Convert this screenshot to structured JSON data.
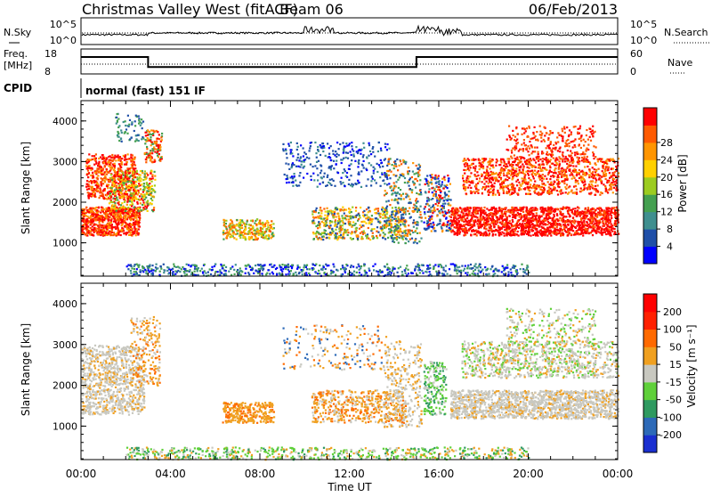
{
  "header": {
    "station": "Christmas Valley West (fitACF)",
    "beam": "Beam 06",
    "date": "06/Feb/2013",
    "cpid_label": "CPID",
    "cpid_value": "normal (fast) 151 IF"
  },
  "chart_data": [
    {
      "type": "line",
      "panel": "noise",
      "left_label": "N.Sky",
      "right_label": "N.Search",
      "left_ticks": [
        "10^5",
        "10^0"
      ],
      "right_ticks": [
        "10^5",
        "10^0"
      ],
      "series": [
        {
          "name": "N.Sky",
          "style": "solid"
        },
        {
          "name": "N.Search",
          "style": "dotted"
        }
      ]
    },
    {
      "type": "line",
      "panel": "frequency",
      "left_label_line1": "Freq.",
      "left_label_line2": "[MHz]",
      "right_label": "Nave",
      "left_ticks": [
        "18",
        "8"
      ],
      "right_ticks": [
        "60",
        "0"
      ],
      "x": [
        0,
        3,
        3,
        15,
        15,
        24
      ],
      "freq_mhz": [
        15,
        15,
        10.5,
        10.5,
        15,
        15
      ],
      "nave": [
        0,
        24
      ]
    },
    {
      "type": "heatmap",
      "panel": "power",
      "ylabel": "Slant Range [km]",
      "ylim": [
        180,
        4500
      ],
      "yticks": [
        "1000",
        "2000",
        "3000",
        "4000"
      ],
      "colorbar_label": "Power [dB]",
      "colorbar_ticks": [
        "4",
        "8",
        "12",
        "16",
        "20",
        "24",
        "28"
      ],
      "colors": [
        "#0000ff",
        "#1f4fa8",
        "#3f8f8f",
        "#44a050",
        "#9ccc20",
        "#ffd000",
        "#ff9500",
        "#ff5a00",
        "#ff0000"
      ]
    },
    {
      "type": "heatmap",
      "panel": "velocity",
      "ylabel": "Slant Range [km]",
      "ylim": [
        180,
        4500
      ],
      "yticks": [
        "1000",
        "2000",
        "3000",
        "4000"
      ],
      "colorbar_label": "Velocity [m s⁻¹]",
      "colorbar_ticks": [
        "200",
        "100",
        "50",
        "15",
        "-15",
        "-50",
        "-100",
        "-200"
      ],
      "colors": [
        "#1a2fd0",
        "#2d6ab8",
        "#2f9a60",
        "#5fd03a",
        "#c8c8c0",
        "#f0a020",
        "#ff6a00",
        "#ff2000",
        "#ff0000"
      ]
    }
  ],
  "xaxis": {
    "label": "Time UT",
    "ticks": [
      "00:00",
      "04:00",
      "08:00",
      "12:00",
      "16:00",
      "20:00",
      "00:00"
    ]
  }
}
